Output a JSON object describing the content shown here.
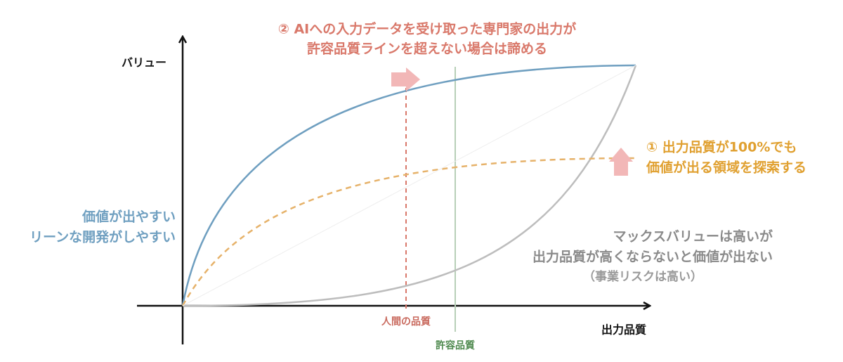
{
  "axes": {
    "y_label": "バリュー",
    "x_label": "出力品質"
  },
  "lines": {
    "human_quality": "人間の品質",
    "acceptable_quality": "許容品質"
  },
  "annotation_2": {
    "lines": [
      "② AIへの入力データを受け取った専門家の出力が",
      "許容品質ラインを超えない場合は諦める"
    ]
  },
  "annotation_1": {
    "lines": [
      "① 出力品質が100%でも",
      "価値が出る領域を探索する"
    ]
  },
  "lean": {
    "lines": [
      "価値が出やすい",
      "リーンな開発がしやすい"
    ]
  },
  "max_value": {
    "lines": [
      "マックスバリューは高いが",
      "出力品質が高くならないと価値が出ない",
      "（事業リスクは高い）"
    ]
  }
}
